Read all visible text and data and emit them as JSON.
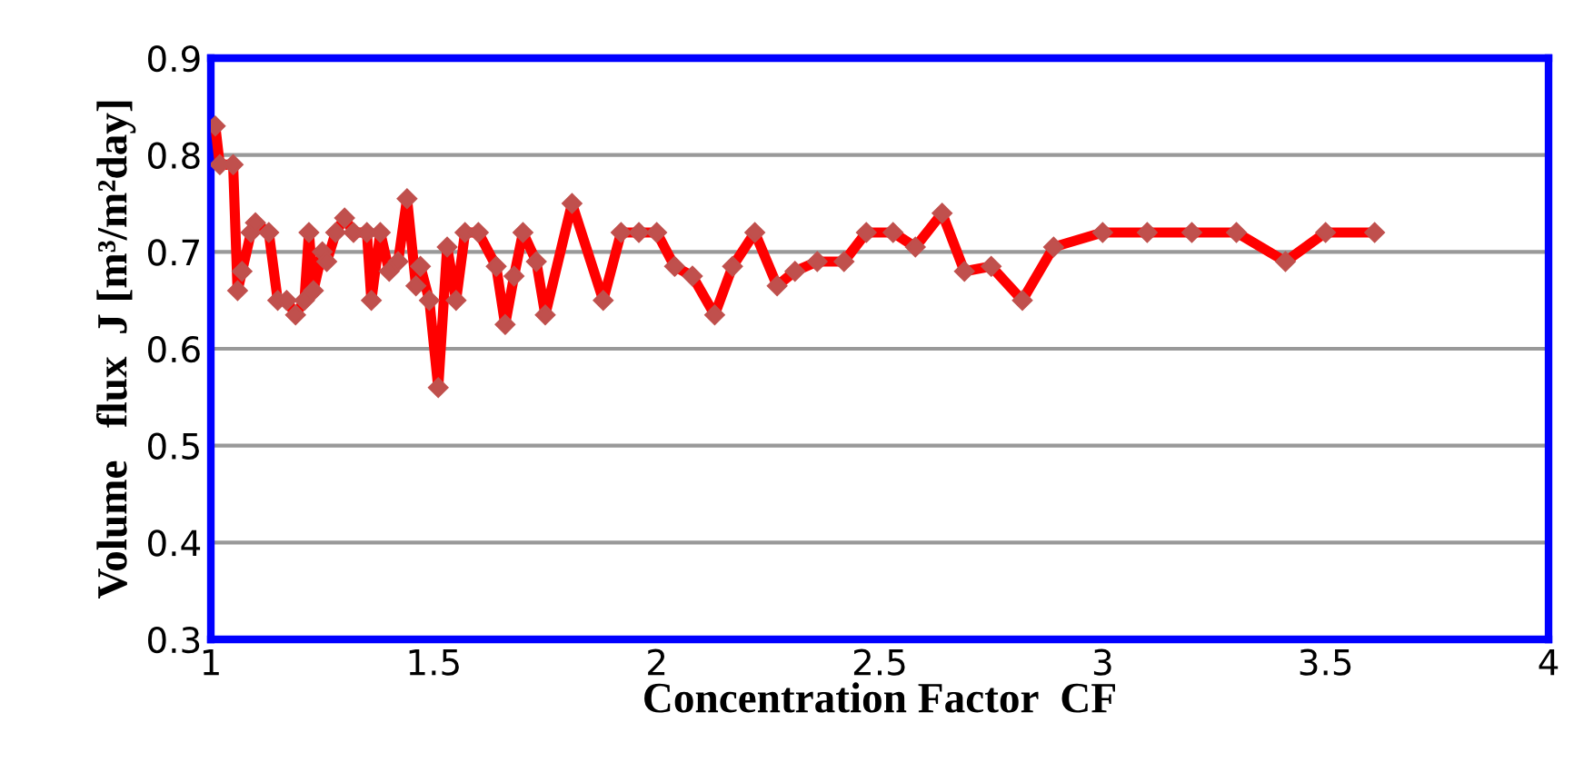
{
  "chart_data": {
    "type": "line",
    "xlabel": "Concentration Factor  CF",
    "ylabel": "Volume   flux  J [m³/m²day]",
    "xlim": [
      1,
      4
    ],
    "xticks": [
      1,
      1.5,
      2,
      2.5,
      3,
      3.5,
      4
    ],
    "ylim": [
      0.3,
      0.9
    ],
    "yticks": [
      0.3,
      0.4,
      0.5,
      0.6,
      0.7,
      0.8,
      0.9
    ],
    "grid": "y",
    "marker": "diamond",
    "line_style": "solid",
    "series": [
      {
        "color": "#ff0000",
        "x": [
          1.01,
          1.02,
          1.05,
          1.06,
          1.07,
          1.09,
          1.1,
          1.13,
          1.15,
          1.17,
          1.19,
          1.21,
          1.22,
          1.23,
          1.25,
          1.26,
          1.28,
          1.3,
          1.32,
          1.35,
          1.36,
          1.38,
          1.4,
          1.42,
          1.44,
          1.46,
          1.47,
          1.49,
          1.51,
          1.53,
          1.55,
          1.57,
          1.6,
          1.64,
          1.66,
          1.68,
          1.7,
          1.73,
          1.75,
          1.81,
          1.88,
          1.92,
          1.96,
          2.0,
          2.04,
          2.08,
          2.13,
          2.17,
          2.22,
          2.27,
          2.31,
          2.36,
          2.42,
          2.47,
          2.53,
          2.58,
          2.64,
          2.69,
          2.75,
          2.82,
          2.89,
          3.0,
          3.1,
          3.2,
          3.3,
          3.41,
          3.5,
          3.61
        ],
        "values": [
          0.83,
          0.79,
          0.79,
          0.66,
          0.68,
          0.72,
          0.73,
          0.72,
          0.65,
          0.65,
          0.635,
          0.65,
          0.72,
          0.66,
          0.7,
          0.69,
          0.72,
          0.735,
          0.72,
          0.72,
          0.65,
          0.72,
          0.68,
          0.69,
          0.755,
          0.665,
          0.685,
          0.65,
          0.56,
          0.705,
          0.65,
          0.72,
          0.72,
          0.685,
          0.625,
          0.675,
          0.72,
          0.69,
          0.635,
          0.75,
          0.65,
          0.72,
          0.72,
          0.72,
          0.685,
          0.675,
          0.635,
          0.685,
          0.72,
          0.665,
          0.68,
          0.69,
          0.69,
          0.72,
          0.72,
          0.705,
          0.74,
          0.68,
          0.685,
          0.65,
          0.705,
          0.72,
          0.72,
          0.72,
          0.72,
          0.69,
          0.72,
          0.72
        ]
      }
    ]
  }
}
